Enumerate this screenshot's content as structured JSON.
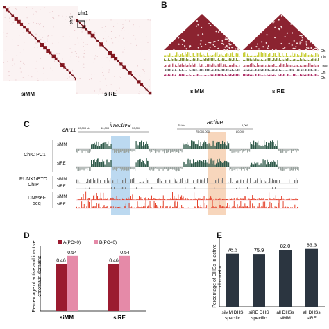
{
  "panels": {
    "A": {
      "letter": "",
      "maps": [
        {
          "label": "siMM"
        },
        {
          "label": "siRE",
          "zoom_label": "chr1"
        }
      ]
    },
    "B": {
      "letter": "B",
      "maps": [
        {
          "label": "siMM"
        },
        {
          "label": "siRE"
        }
      ],
      "track_labels": [
        "Ch",
        "inte",
        "DNs",
        "Ch",
        "Ch"
      ]
    },
    "C": {
      "letter": "C",
      "chrom": "chr11",
      "inactive_label": "inactive",
      "active_label": "active",
      "coord_labels": [
        "50,000 kb",
        "40,000",
        "50,000",
        "75 kb",
        "5,000",
        "75,000,000",
        "80,000"
      ],
      "groups": [
        {
          "label": "ChIC PC1",
          "tracks": [
            "siMM",
            "siRE"
          ]
        },
        {
          "label": "RUNX1/ETO ChIP",
          "tracks": [
            "siMM",
            "siRE"
          ]
        },
        {
          "label": "DNaseI- seq",
          "tracks": [
            "siMM",
            "siRE"
          ]
        }
      ],
      "colors": {
        "pc1": "#2f5a4a",
        "chip": "#7a7a7a",
        "dnase": "#e23018",
        "inactive": "#bcd9f0",
        "active": "#f4c4a0"
      }
    },
    "D": {
      "letter": "D",
      "ylabel": "Percentage of active and inactive chromatin domains",
      "legend": [
        "A(PC>0)",
        "B(PC<0)"
      ]
    },
    "E": {
      "letter": "E",
      "ylabel": "Percentage of DHSs in active chromatin"
    }
  },
  "chart_data": [
    {
      "type": "bar",
      "title": "",
      "ylabel": "Percentage of active and inactive chromatin domains",
      "categories": [
        "siMM",
        "siRE"
      ],
      "series": [
        {
          "name": "A(PC>0)",
          "values": [
            0.46,
            0.46
          ],
          "color": "#9b1b30"
        },
        {
          "name": "B(PC<0)",
          "values": [
            0.54,
            0.54
          ],
          "color": "#e58aa8"
        }
      ],
      "ylim": [
        0,
        0.6
      ],
      "legend": "top"
    },
    {
      "type": "bar",
      "title": "",
      "ylabel": "Percentage of DHSs in active chromatin",
      "categories": [
        "siMM DHS specific",
        "siRE DHS specific",
        "all DHSs siMM",
        "all DHSs siRE"
      ],
      "values": [
        76.3,
        75.9,
        82.0,
        83.3
      ],
      "value_labels": [
        "76.3",
        "75.9",
        "82.0",
        "83.3"
      ],
      "color": "#2b3540",
      "ylim": [
        0,
        100
      ]
    }
  ]
}
